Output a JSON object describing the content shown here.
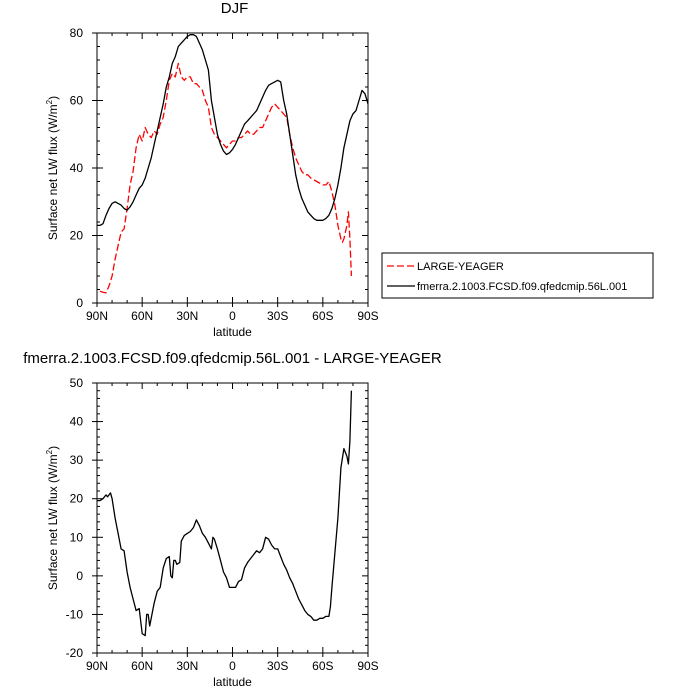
{
  "chart_data": [
    {
      "type": "line",
      "title": "DJF",
      "xlabel": "latitude",
      "ylabel": "Surface net LW flux (W/m²)",
      "ylabel_parts": [
        "Surface net LW flux (W/m",
        "2",
        ")"
      ],
      "xlim": [
        90,
        -90
      ],
      "ylim": [
        0,
        80
      ],
      "x_ticks": [
        90,
        60,
        30,
        0,
        -30,
        -60,
        -90
      ],
      "x_tick_labels": [
        "90N",
        "60N",
        "30N",
        "0",
        "30S",
        "60S",
        "90S"
      ],
      "y_ticks": [
        0,
        20,
        40,
        60,
        80
      ],
      "y_tick_labels": [
        "0",
        "20",
        "40",
        "60",
        "80"
      ],
      "legend_position": "right",
      "series": [
        {
          "name": "LARGE-YEAGER",
          "color": "#ff0000",
          "dash": "dashed",
          "points": [
            [
              88,
              3.5
            ],
            [
              86,
              3.2
            ],
            [
              84,
              3
            ],
            [
              82,
              5
            ],
            [
              80,
              8
            ],
            [
              78,
              13
            ],
            [
              76,
              17
            ],
            [
              74,
              21
            ],
            [
              72,
              22
            ],
            [
              70,
              28
            ],
            [
              68,
              35
            ],
            [
              66,
              39
            ],
            [
              64,
              46
            ],
            [
              62,
              50
            ],
            [
              60,
              48
            ],
            [
              58,
              52
            ],
            [
              56,
              50
            ],
            [
              54,
              49
            ],
            [
              52,
              51
            ],
            [
              50,
              50
            ],
            [
              48,
              53
            ],
            [
              46,
              55
            ],
            [
              44,
              60
            ],
            [
              42,
              66
            ],
            [
              40,
              68
            ],
            [
              38,
              67
            ],
            [
              36,
              71
            ],
            [
              34,
              67
            ],
            [
              32,
              66
            ],
            [
              30,
              67
            ],
            [
              28,
              67
            ],
            [
              26,
              65
            ],
            [
              24,
              65
            ],
            [
              22,
              64
            ],
            [
              20,
              63
            ],
            [
              18,
              60
            ],
            [
              16,
              58
            ],
            [
              14,
              52
            ],
            [
              12,
              50
            ],
            [
              10,
              49
            ],
            [
              8,
              48
            ],
            [
              6,
              47
            ],
            [
              4,
              46
            ],
            [
              2,
              47
            ],
            [
              0,
              48
            ],
            [
              -2,
              48
            ],
            [
              -4,
              49
            ],
            [
              -6,
              49
            ],
            [
              -8,
              50
            ],
            [
              -10,
              51
            ],
            [
              -12,
              50
            ],
            [
              -14,
              50
            ],
            [
              -16,
              51
            ],
            [
              -18,
              52
            ],
            [
              -20,
              52
            ],
            [
              -22,
              54
            ],
            [
              -24,
              56
            ],
            [
              -26,
              58
            ],
            [
              -28,
              59
            ],
            [
              -30,
              58
            ],
            [
              -32,
              57
            ],
            [
              -34,
              56
            ],
            [
              -36,
              55
            ],
            [
              -38,
              50
            ],
            [
              -40,
              46
            ],
            [
              -42,
              43
            ],
            [
              -44,
              41
            ],
            [
              -46,
              39
            ],
            [
              -48,
              38
            ],
            [
              -50,
              38
            ],
            [
              -52,
              37
            ],
            [
              -54,
              36.5
            ],
            [
              -56,
              36
            ],
            [
              -58,
              35.5
            ],
            [
              -60,
              35
            ],
            [
              -62,
              35
            ],
            [
              -64,
              36
            ],
            [
              -66,
              33
            ],
            [
              -68,
              29
            ],
            [
              -70,
              23
            ],
            [
              -72,
              19
            ],
            [
              -73,
              18
            ],
            [
              -74,
              19
            ],
            [
              -76,
              23
            ],
            [
              -77,
              27
            ],
            [
              -78,
              19
            ],
            [
              -79,
              8
            ]
          ]
        },
        {
          "name": "fmerra.2.1003.FCSD.f09.qfedcmip.56L.001",
          "color": "#000000",
          "dash": "solid",
          "points": [
            [
              90,
              23
            ],
            [
              88,
              23
            ],
            [
              86,
              23.5
            ],
            [
              84,
              26
            ],
            [
              82,
              28
            ],
            [
              80,
              29.5
            ],
            [
              78,
              30
            ],
            [
              76,
              29.5
            ],
            [
              74,
              29
            ],
            [
              72,
              28
            ],
            [
              70,
              27.5
            ],
            [
              68,
              28.5
            ],
            [
              66,
              30
            ],
            [
              64,
              32
            ],
            [
              62,
              34
            ],
            [
              60,
              35
            ],
            [
              58,
              37
            ],
            [
              56,
              40
            ],
            [
              54,
              43
            ],
            [
              52,
              47
            ],
            [
              50,
              51
            ],
            [
              48,
              55
            ],
            [
              46,
              59
            ],
            [
              44,
              64
            ],
            [
              42,
              67
            ],
            [
              40,
              71
            ],
            [
              38,
              73
            ],
            [
              36,
              76
            ],
            [
              34,
              77
            ],
            [
              32,
              78
            ],
            [
              30,
              79
            ],
            [
              28,
              79.5
            ],
            [
              26,
              79.5
            ],
            [
              24,
              79
            ],
            [
              22,
              77
            ],
            [
              20,
              75
            ],
            [
              18,
              72
            ],
            [
              16,
              69
            ],
            [
              14,
              60
            ],
            [
              12,
              55
            ],
            [
              10,
              50
            ],
            [
              8,
              47
            ],
            [
              6,
              45
            ],
            [
              4,
              44
            ],
            [
              2,
              44.5
            ],
            [
              0,
              45.5
            ],
            [
              -2,
              47
            ],
            [
              -4,
              49
            ],
            [
              -6,
              51
            ],
            [
              -8,
              53
            ],
            [
              -10,
              54
            ],
            [
              -12,
              55
            ],
            [
              -14,
              56
            ],
            [
              -16,
              57
            ],
            [
              -18,
              59
            ],
            [
              -20,
              61
            ],
            [
              -22,
              63
            ],
            [
              -24,
              64.5
            ],
            [
              -26,
              65
            ],
            [
              -28,
              65.5
            ],
            [
              -30,
              66
            ],
            [
              -32,
              65.5
            ],
            [
              -34,
              60
            ],
            [
              -36,
              56
            ],
            [
              -38,
              50
            ],
            [
              -40,
              44
            ],
            [
              -42,
              38
            ],
            [
              -44,
              34
            ],
            [
              -46,
              31
            ],
            [
              -48,
              29
            ],
            [
              -50,
              27
            ],
            [
              -52,
              26
            ],
            [
              -54,
              25
            ],
            [
              -56,
              24.5
            ],
            [
              -58,
              24.5
            ],
            [
              -60,
              24.5
            ],
            [
              -62,
              25
            ],
            [
              -64,
              26
            ],
            [
              -66,
              28
            ],
            [
              -68,
              31
            ],
            [
              -70,
              35
            ],
            [
              -72,
              40
            ],
            [
              -74,
              46
            ],
            [
              -76,
              50
            ],
            [
              -78,
              54
            ],
            [
              -80,
              56
            ],
            [
              -82,
              57
            ],
            [
              -84,
              60
            ],
            [
              -86,
              63
            ],
            [
              -88,
              62
            ],
            [
              -90,
              59
            ]
          ]
        }
      ]
    },
    {
      "type": "line",
      "title": "fmerra.2.1003.FCSD.f09.qfedcmip.56L.001 - LARGE-YEAGER",
      "xlabel": "latitude",
      "ylabel": "Surface net LW flux (W/m²)",
      "ylabel_parts": [
        "Surface net LW flux (W/m",
        "2",
        ")"
      ],
      "xlim": [
        90,
        -90
      ],
      "ylim": [
        -20,
        50
      ],
      "x_ticks": [
        90,
        60,
        30,
        0,
        -30,
        -60,
        -90
      ],
      "x_tick_labels": [
        "90N",
        "60N",
        "30N",
        "0",
        "30S",
        "60S",
        "90S"
      ],
      "y_ticks": [
        -20,
        -10,
        0,
        10,
        20,
        30,
        40,
        50
      ],
      "y_tick_labels": [
        "-20",
        "-10",
        "0",
        "10",
        "20",
        "30",
        "40",
        "50"
      ],
      "series": [
        {
          "color": "#000000",
          "dash": "solid",
          "points": [
            [
              90,
              19.5
            ],
            [
              88,
              19.5
            ],
            [
              86,
              20
            ],
            [
              84,
              21
            ],
            [
              83,
              20.5
            ],
            [
              82,
              21
            ],
            [
              81,
              21.5
            ],
            [
              80,
              20
            ],
            [
              78,
              15
            ],
            [
              76,
              11
            ],
            [
              74,
              7
            ],
            [
              72,
              6.5
            ],
            [
              70,
              1
            ],
            [
              68,
              -3
            ],
            [
              66,
              -6
            ],
            [
              64,
              -9
            ],
            [
              62,
              -8.5
            ],
            [
              60,
              -15
            ],
            [
              58,
              -15.5
            ],
            [
              57,
              -10
            ],
            [
              56,
              -10
            ],
            [
              55,
              -13
            ],
            [
              54,
              -11
            ],
            [
              52,
              -7
            ],
            [
              50,
              -4
            ],
            [
              48,
              -3
            ],
            [
              46,
              2
            ],
            [
              44,
              4.5
            ],
            [
              42,
              5
            ],
            [
              41,
              0
            ],
            [
              40,
              -0.5
            ],
            [
              39,
              4
            ],
            [
              38,
              4
            ],
            [
              37,
              3
            ],
            [
              35,
              3.5
            ],
            [
              34,
              9
            ],
            [
              32,
              10.5
            ],
            [
              30,
              11
            ],
            [
              28,
              11.5
            ],
            [
              26,
              12.5
            ],
            [
              24,
              14.5
            ],
            [
              22,
              13
            ],
            [
              20,
              11
            ],
            [
              18,
              10
            ],
            [
              16,
              8.5
            ],
            [
              14,
              7
            ],
            [
              13,
              10
            ],
            [
              12,
              9.5
            ],
            [
              10,
              7
            ],
            [
              8,
              4
            ],
            [
              6,
              1
            ],
            [
              4,
              -0.5
            ],
            [
              2,
              -3
            ],
            [
              0,
              -3
            ],
            [
              -2,
              -3
            ],
            [
              -4,
              -1.5
            ],
            [
              -6,
              -1
            ],
            [
              -8,
              2
            ],
            [
              -10,
              3.5
            ],
            [
              -12,
              4.5
            ],
            [
              -14,
              5.5
            ],
            [
              -16,
              6.5
            ],
            [
              -18,
              6
            ],
            [
              -20,
              7
            ],
            [
              -22,
              10
            ],
            [
              -24,
              9.5
            ],
            [
              -26,
              8
            ],
            [
              -28,
              7
            ],
            [
              -30,
              7
            ],
            [
              -32,
              5
            ],
            [
              -34,
              3
            ],
            [
              -36,
              1.5
            ],
            [
              -38,
              -0.5
            ],
            [
              -40,
              -2
            ],
            [
              -42,
              -4
            ],
            [
              -44,
              -6
            ],
            [
              -46,
              -7.5
            ],
            [
              -48,
              -9
            ],
            [
              -50,
              -10
            ],
            [
              -52,
              -10.5
            ],
            [
              -54,
              -11.5
            ],
            [
              -56,
              -11.5
            ],
            [
              -58,
              -11
            ],
            [
              -60,
              -11
            ],
            [
              -62,
              -10.5
            ],
            [
              -64,
              -10.5
            ],
            [
              -65,
              -8
            ],
            [
              -66,
              -3
            ],
            [
              -68,
              6
            ],
            [
              -70,
              15
            ],
            [
              -72,
              28
            ],
            [
              -74,
              33
            ],
            [
              -76,
              31
            ],
            [
              -77,
              29
            ],
            [
              -78,
              35
            ],
            [
              -79,
              48
            ]
          ]
        }
      ]
    }
  ]
}
